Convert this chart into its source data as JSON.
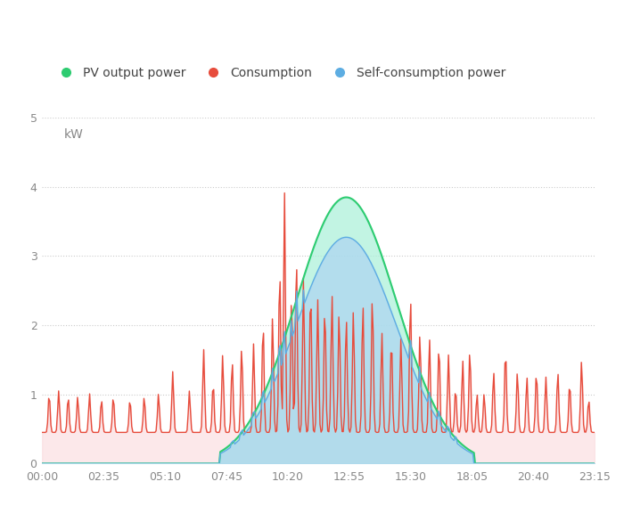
{
  "title": "",
  "ylabel": "kW",
  "xlim_hours": [
    0,
    23.25
  ],
  "ylim": [
    0,
    5
  ],
  "yticks": [
    0,
    1,
    2,
    3,
    4,
    5
  ],
  "xtick_labels": [
    "00:00",
    "02:35",
    "05:10",
    "07:45",
    "10:20",
    "12:55",
    "15:30",
    "18:05",
    "20:40",
    "23:15"
  ],
  "xtick_hours": [
    0,
    2.583,
    5.167,
    7.75,
    10.333,
    12.917,
    15.5,
    18.083,
    20.667,
    23.25
  ],
  "bg_color": "#ffffff",
  "grid_color": "#cccccc",
  "pv_color": "#2ecc71",
  "pv_fill_color": "#a8f0d8",
  "consumption_color": "#e74c3c",
  "consumption_fill_color": "#fadadd",
  "self_color": "#5dade2",
  "self_fill_color": "#aed6f1",
  "legend_labels": [
    "PV output power",
    "Consumption",
    "Self-consumption power"
  ]
}
